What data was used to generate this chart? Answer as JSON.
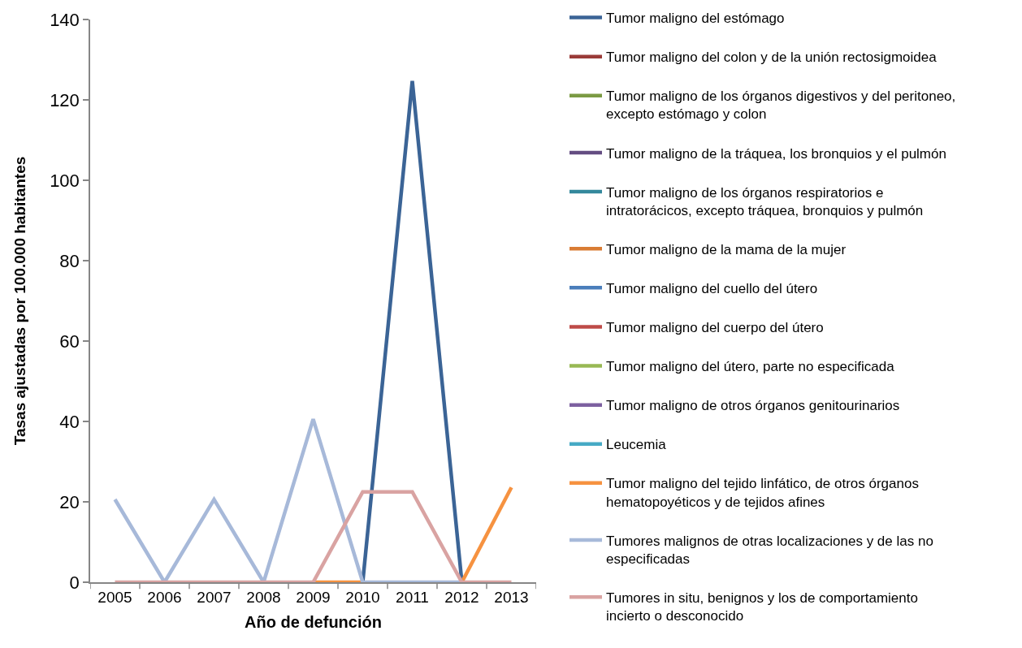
{
  "chart_data": {
    "type": "line",
    "xlabel": "Año de defunción",
    "ylabel": "Tasas ajustadas por 100.000 habitantes",
    "categories": [
      "2005",
      "2006",
      "2007",
      "2008",
      "2009",
      "2010",
      "2011",
      "2012",
      "2013"
    ],
    "ylim": [
      0,
      140
    ],
    "yticks": [
      0,
      20,
      40,
      60,
      80,
      100,
      120,
      140
    ],
    "legend": "right",
    "line_style": "solid",
    "series": [
      {
        "name": "Tumor maligno del estómago",
        "color": "#3b6496",
        "values": [
          null,
          null,
          null,
          null,
          null,
          0,
          124.7,
          0,
          null
        ]
      },
      {
        "name": "Tumor maligno del colon y de la unión rectosigmoidea",
        "color": "#9a3b38",
        "values": [
          null,
          null,
          null,
          null,
          null,
          null,
          null,
          null,
          null
        ]
      },
      {
        "name": "Tumor maligno de los órganos digestivos y del peritoneo, excepto estómago y colon",
        "color": "#7b9a43",
        "values": [
          null,
          null,
          null,
          null,
          null,
          null,
          null,
          null,
          null
        ]
      },
      {
        "name": "Tumor maligno de la tráquea, los bronquios y el pulmón",
        "color": "#644d82",
        "values": [
          null,
          null,
          null,
          null,
          null,
          null,
          null,
          null,
          null
        ]
      },
      {
        "name": "Tumor maligno de los órganos respiratorios e intratorácicos, excepto tráquea, bronquios y pulmón",
        "color": "#34889c",
        "values": [
          null,
          null,
          null,
          null,
          null,
          null,
          null,
          null,
          null
        ]
      },
      {
        "name": "Tumor maligno de la mama de la mujer",
        "color": "#d97c34",
        "values": [
          null,
          null,
          null,
          null,
          null,
          null,
          null,
          null,
          null
        ]
      },
      {
        "name": "Tumor maligno del cuello del útero",
        "color": "#4a7ebb",
        "values": [
          null,
          null,
          null,
          null,
          null,
          null,
          null,
          null,
          null
        ]
      },
      {
        "name": "Tumor maligno del cuerpo del útero",
        "color": "#be4b48",
        "values": [
          null,
          null,
          null,
          null,
          null,
          null,
          null,
          null,
          null
        ]
      },
      {
        "name": "Tumor maligno del útero, parte no especificada",
        "color": "#98b954",
        "values": [
          null,
          null,
          null,
          null,
          null,
          null,
          null,
          null,
          null
        ]
      },
      {
        "name": "Tumor maligno de otros órganos genitourinarios",
        "color": "#7d60a0",
        "values": [
          null,
          null,
          null,
          null,
          null,
          null,
          null,
          null,
          null
        ]
      },
      {
        "name": "Leucemia",
        "color": "#46aac5",
        "values": [
          null,
          null,
          null,
          null,
          null,
          null,
          null,
          null,
          null
        ]
      },
      {
        "name": "Tumor maligno del tejido linfático, de otros órganos hematopoyéticos y de tejidos afines",
        "color": "#f69240",
        "values": [
          null,
          null,
          null,
          null,
          0,
          0,
          null,
          0,
          23.6
        ]
      },
      {
        "name": "Tumores malignos de otras localizaciones y de las no especificadas",
        "color": "#a7b9d9",
        "values": [
          20.6,
          0,
          20.6,
          0,
          40.6,
          0,
          0,
          0,
          null
        ]
      },
      {
        "name": "Tumores in situ, benignos y los de comportamiento incierto o desconocido",
        "color": "#d9a3a2",
        "values": [
          0,
          0,
          0,
          0,
          0,
          22.5,
          22.5,
          0,
          0
        ]
      }
    ]
  }
}
